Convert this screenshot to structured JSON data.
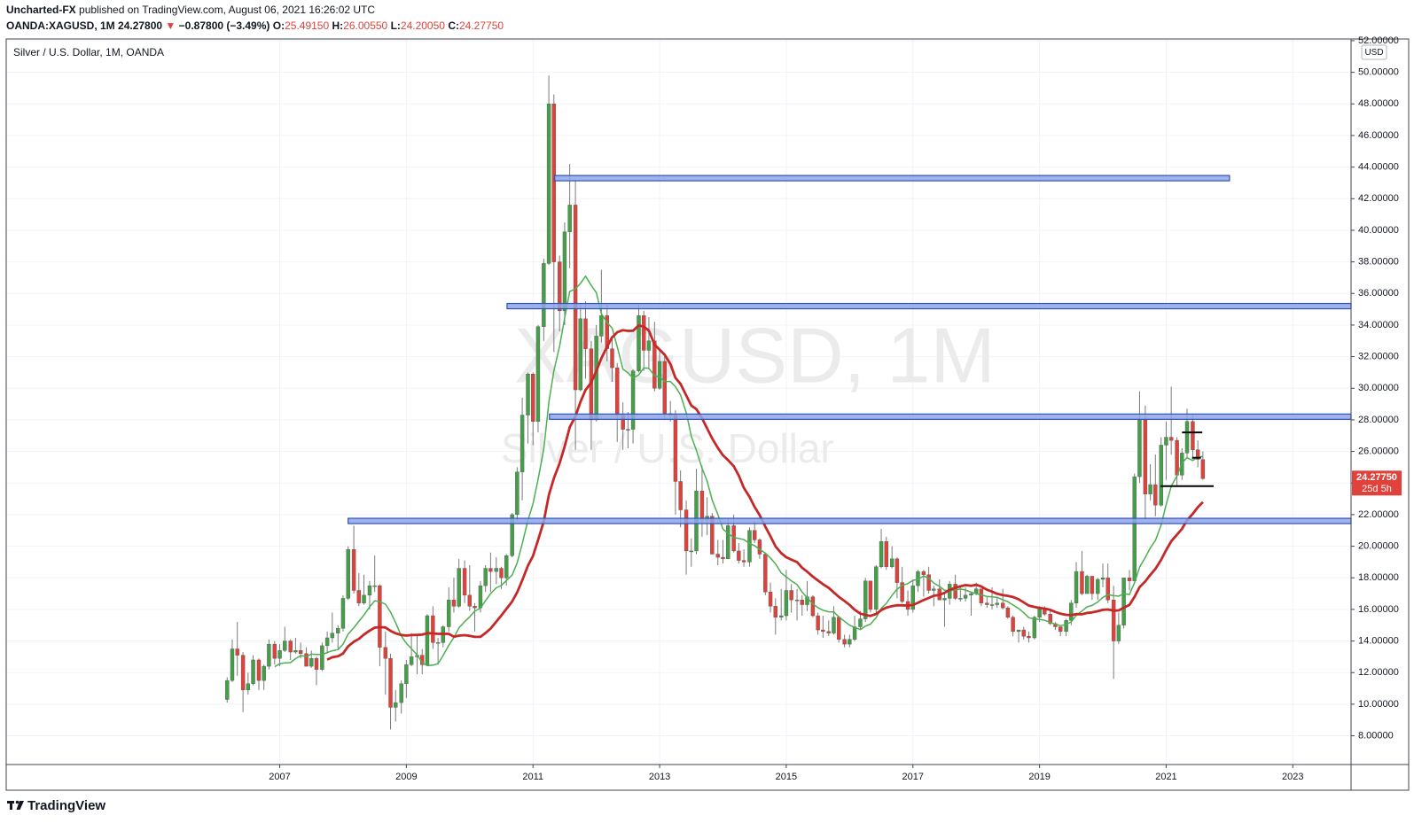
{
  "header": {
    "author": "Uncharted-FX",
    "published": "published on TradingView.com, August 06, 2021 16:26:02 UTC",
    "symbol": "OANDA:XAGUSD, 1M",
    "last": "24.27800",
    "arrow": "▼",
    "change": "−0.87800 (−3.49%)",
    "ohlc": [
      {
        "label": "O:",
        "value": "25.49150"
      },
      {
        "label": "H:",
        "value": "26.00550"
      },
      {
        "label": "L:",
        "value": "24.20050"
      },
      {
        "label": "C:",
        "value": "24.27750"
      }
    ]
  },
  "footer": {
    "brand": "TradingView"
  },
  "chart_data": {
    "type": "candlestick",
    "legend": "Silver / U.S. Dollar, 1M, OANDA",
    "watermark": [
      "XAGUSD, 1M",
      "Silver / U.S. Dollar"
    ],
    "currency": "USD",
    "up_color": "#43a047",
    "down_color": "#e0413a",
    "wick_color": "#7a7a7a",
    "ma_colors": [
      "#4caf50",
      "#c62828"
    ],
    "grid": true,
    "price_label": {
      "value": 24.2775,
      "label": "24.27750",
      "countdown": "25d 5h",
      "color": "#e0413a"
    },
    "xlim": [
      2002.68,
      2023.92
    ],
    "xticks": [
      2007,
      2009,
      2011,
      2013,
      2015,
      2017,
      2019,
      2021,
      2023
    ],
    "ylim": [
      6.18,
      52.11
    ],
    "yticks": [
      {
        "value": 8,
        "label": "8.00000"
      },
      {
        "value": 10,
        "label": "10.00000"
      },
      {
        "value": 12,
        "label": "12.00000"
      },
      {
        "value": 14,
        "label": "14.00000"
      },
      {
        "value": 16,
        "label": "16.00000"
      },
      {
        "value": 18,
        "label": "18.00000"
      },
      {
        "value": 20,
        "label": "20.00000"
      },
      {
        "value": 22,
        "label": "22.00000"
      },
      {
        "value": 24,
        "label": "24.00000"
      },
      {
        "value": 26,
        "label": "26.00000"
      },
      {
        "value": 28,
        "label": "28.00000"
      },
      {
        "value": 30,
        "label": "30.00000"
      },
      {
        "value": 32,
        "label": "32.00000"
      },
      {
        "value": 34,
        "label": "34.00000"
      },
      {
        "value": 36,
        "label": "36.00000"
      },
      {
        "value": 38,
        "label": "38.00000"
      },
      {
        "value": 40,
        "label": "40.00000"
      },
      {
        "value": 42,
        "label": "42.00000"
      },
      {
        "value": 44,
        "label": "44.00000"
      },
      {
        "value": 46,
        "label": "46.00000"
      },
      {
        "value": 48,
        "label": "48.00000"
      },
      {
        "value": 50,
        "label": "50.00000"
      },
      {
        "value": 52,
        "label": "52.00000"
      }
    ],
    "levels": [
      {
        "value": 43.3,
        "x": [
          2011.34,
          2022.0
        ],
        "color": "#2f52b8"
      },
      {
        "value": 35.2,
        "x": [
          2010.59,
          2023.92
        ],
        "color": "#2f52b8"
      },
      {
        "value": 28.2,
        "x": [
          2011.26,
          2023.92
        ],
        "color": "#2f52b8"
      },
      {
        "value": 21.6,
        "x": [
          2008.08,
          2023.92
        ],
        "color": "#2f52b8"
      },
      {
        "value": 27.2,
        "x": [
          2021.25,
          2021.57
        ],
        "color": "#000000"
      },
      {
        "value": 25.6,
        "x": [
          2021.41,
          2021.55
        ],
        "color": "#000000"
      },
      {
        "value": 23.8,
        "x": [
          2020.91,
          2021.75
        ],
        "color": "#000000"
      }
    ],
    "x": [
      2006.17,
      2006.25,
      2006.33,
      2006.42,
      2006.5,
      2006.58,
      2006.67,
      2006.75,
      2006.83,
      2006.92,
      2007,
      2007.08,
      2007.17,
      2007.25,
      2007.33,
      2007.42,
      2007.5,
      2007.58,
      2007.67,
      2007.75,
      2007.83,
      2007.92,
      2008,
      2008.08,
      2008.17,
      2008.25,
      2008.33,
      2008.42,
      2008.5,
      2008.58,
      2008.67,
      2008.75,
      2008.83,
      2008.92,
      2009,
      2009.08,
      2009.17,
      2009.25,
      2009.33,
      2009.42,
      2009.5,
      2009.58,
      2009.67,
      2009.75,
      2009.83,
      2009.92,
      2010,
      2010.08,
      2010.17,
      2010.25,
      2010.33,
      2010.42,
      2010.5,
      2010.58,
      2010.67,
      2010.75,
      2010.83,
      2010.92,
      2011,
      2011.08,
      2011.17,
      2011.25,
      2011.33,
      2011.42,
      2011.5,
      2011.58,
      2011.67,
      2011.75,
      2011.83,
      2011.92,
      2012,
      2012.08,
      2012.17,
      2012.25,
      2012.33,
      2012.42,
      2012.5,
      2012.58,
      2012.67,
      2012.75,
      2012.83,
      2012.92,
      2013,
      2013.08,
      2013.17,
      2013.25,
      2013.33,
      2013.42,
      2013.5,
      2013.58,
      2013.67,
      2013.75,
      2013.83,
      2013.92,
      2014,
      2014.08,
      2014.17,
      2014.25,
      2014.33,
      2014.42,
      2014.5,
      2014.58,
      2014.67,
      2014.75,
      2014.83,
      2014.92,
      2015,
      2015.08,
      2015.17,
      2015.25,
      2015.33,
      2015.42,
      2015.5,
      2015.58,
      2015.67,
      2015.75,
      2015.83,
      2015.92,
      2016,
      2016.08,
      2016.17,
      2016.25,
      2016.33,
      2016.42,
      2016.5,
      2016.58,
      2016.67,
      2016.75,
      2016.83,
      2016.92,
      2017,
      2017.08,
      2017.17,
      2017.25,
      2017.33,
      2017.42,
      2017.5,
      2017.58,
      2017.67,
      2017.75,
      2017.83,
      2017.92,
      2018,
      2018.08,
      2018.17,
      2018.25,
      2018.33,
      2018.42,
      2018.5,
      2018.58,
      2018.67,
      2018.75,
      2018.83,
      2018.92,
      2019,
      2019.08,
      2019.17,
      2019.25,
      2019.33,
      2019.42,
      2019.5,
      2019.58,
      2019.67,
      2019.75,
      2019.83,
      2019.92,
      2020,
      2020.08,
      2020.17,
      2020.25,
      2020.33,
      2020.42,
      2020.5,
      2020.58,
      2020.67,
      2020.75,
      2020.83,
      2020.92,
      2021,
      2021.08,
      2021.17,
      2021.25,
      2021.33,
      2021.42,
      2021.5,
      2021.58
    ],
    "candles": [
      [
        10.3,
        11.7,
        10.1,
        11.5
      ],
      [
        11.5,
        14.1,
        11.4,
        13.5
      ],
      [
        13.5,
        15.2,
        11.8,
        13.1
      ],
      [
        13.1,
        13.3,
        9.5,
        10.9
      ],
      [
        10.9,
        12.0,
        10.6,
        11.3
      ],
      [
        11.3,
        13.1,
        11.2,
        12.8
      ],
      [
        12.8,
        12.9,
        10.9,
        11.5
      ],
      [
        11.5,
        12.5,
        10.9,
        12.4
      ],
      [
        12.4,
        14.1,
        12.2,
        13.8
      ],
      [
        13.8,
        14.0,
        12.5,
        12.9
      ],
      [
        12.9,
        13.8,
        12.4,
        13.4
      ],
      [
        13.4,
        14.9,
        13.3,
        14.0
      ],
      [
        14.0,
        14.1,
        12.8,
        13.3
      ],
      [
        13.3,
        14.2,
        13.2,
        13.4
      ],
      [
        13.4,
        13.9,
        12.9,
        13.2
      ],
      [
        13.2,
        13.6,
        12.4,
        12.4
      ],
      [
        12.4,
        13.4,
        12.3,
        12.9
      ],
      [
        12.9,
        13.0,
        11.2,
        12.2
      ],
      [
        12.2,
        13.9,
        12.1,
        13.7
      ],
      [
        13.7,
        14.6,
        13.2,
        14.2
      ],
      [
        14.2,
        15.8,
        13.9,
        14.5
      ],
      [
        14.5,
        15.0,
        13.5,
        14.8
      ],
      [
        14.8,
        16.9,
        14.6,
        16.7
      ],
      [
        16.7,
        20.0,
        16.6,
        19.8
      ],
      [
        19.8,
        21.3,
        17.0,
        17.2
      ],
      [
        17.2,
        18.3,
        16.2,
        16.4
      ],
      [
        16.4,
        18.2,
        16.3,
        16.9
      ],
      [
        16.9,
        17.8,
        16.0,
        17.5
      ],
      [
        17.5,
        19.4,
        17.1,
        17.5
      ],
      [
        17.5,
        17.6,
        12.4,
        13.6
      ],
      [
        13.6,
        14.6,
        10.6,
        12.9
      ],
      [
        12.9,
        13.2,
        8.4,
        9.8
      ],
      [
        9.8,
        10.9,
        8.9,
        10.1
      ],
      [
        10.1,
        11.5,
        9.4,
        11.3
      ],
      [
        11.3,
        12.8,
        10.4,
        12.5
      ],
      [
        12.5,
        14.5,
        12.4,
        13.0
      ],
      [
        13.0,
        14.4,
        11.9,
        13.1
      ],
      [
        13.1,
        13.5,
        11.9,
        12.5
      ],
      [
        12.5,
        15.7,
        12.4,
        15.6
      ],
      [
        15.6,
        16.2,
        13.5,
        13.9
      ],
      [
        13.9,
        14.2,
        12.5,
        13.9
      ],
      [
        13.9,
        15.0,
        13.6,
        14.9
      ],
      [
        14.9,
        17.4,
        14.6,
        16.6
      ],
      [
        16.6,
        18.0,
        15.8,
        16.2
      ],
      [
        16.2,
        19.2,
        16.1,
        18.6
      ],
      [
        18.6,
        19.1,
        16.4,
        16.9
      ],
      [
        16.9,
        18.8,
        15.9,
        16.2
      ],
      [
        16.2,
        16.4,
        14.6,
        16.1
      ],
      [
        16.1,
        17.8,
        15.8,
        17.5
      ],
      [
        17.5,
        18.8,
        17.1,
        18.6
      ],
      [
        18.6,
        19.6,
        17.1,
        18.4
      ],
      [
        18.4,
        19.3,
        17.6,
        18.6
      ],
      [
        18.6,
        18.7,
        17.3,
        18.0
      ],
      [
        18.0,
        19.5,
        17.5,
        19.4
      ],
      [
        19.4,
        22.1,
        19.3,
        22.0
      ],
      [
        22.0,
        25.0,
        21.6,
        24.7
      ],
      [
        24.7,
        29.4,
        22.9,
        28.3
      ],
      [
        28.3,
        31.0,
        26.5,
        30.9
      ],
      [
        30.9,
        31.0,
        26.4,
        27.9
      ],
      [
        27.9,
        34.0,
        27.2,
        33.9
      ],
      [
        33.9,
        38.2,
        33.0,
        37.9
      ],
      [
        37.9,
        49.8,
        37.8,
        48.0
      ],
      [
        48.0,
        48.6,
        32.3,
        38.0
      ],
      [
        38.0,
        38.4,
        33.6,
        34.9
      ],
      [
        34.9,
        40.5,
        34.0,
        39.9
      ],
      [
        39.9,
        44.2,
        37.6,
        41.6
      ],
      [
        41.6,
        43.2,
        26.1,
        29.9
      ],
      [
        29.9,
        35.4,
        29.8,
        34.4
      ],
      [
        34.4,
        35.5,
        30.6,
        32.5
      ],
      [
        32.5,
        33.0,
        26.1,
        28.0
      ],
      [
        28.0,
        34.0,
        27.9,
        33.3
      ],
      [
        33.3,
        37.5,
        32.9,
        34.6
      ],
      [
        34.6,
        35.4,
        31.7,
        32.5
      ],
      [
        32.5,
        33.1,
        30.4,
        31.3
      ],
      [
        31.3,
        31.6,
        26.6,
        28.3
      ],
      [
        28.3,
        29.1,
        26.1,
        27.4
      ],
      [
        27.4,
        28.5,
        26.2,
        27.4
      ],
      [
        27.4,
        31.2,
        26.5,
        31.1
      ],
      [
        31.1,
        35.3,
        31.0,
        34.6
      ],
      [
        34.6,
        34.9,
        31.1,
        32.4
      ],
      [
        32.4,
        34.5,
        31.2,
        33.0
      ],
      [
        33.0,
        34.2,
        29.8,
        30.0
      ],
      [
        30.0,
        32.4,
        29.9,
        31.7
      ],
      [
        31.7,
        32.2,
        28.0,
        28.4
      ],
      [
        28.4,
        29.2,
        27.9,
        28.3
      ],
      [
        28.3,
        28.6,
        22.0,
        24.1
      ],
      [
        24.1,
        24.8,
        21.2,
        22.3
      ],
      [
        22.3,
        22.9,
        18.2,
        19.7
      ],
      [
        19.7,
        20.5,
        18.7,
        19.7
      ],
      [
        19.7,
        24.9,
        19.5,
        23.5
      ],
      [
        23.5,
        25.1,
        20.6,
        21.7
      ],
      [
        21.7,
        23.1,
        20.7,
        21.9
      ],
      [
        21.9,
        22.1,
        19.5,
        19.5
      ],
      [
        19.5,
        20.4,
        18.8,
        19.3
      ],
      [
        19.3,
        20.4,
        18.9,
        19.2
      ],
      [
        19.2,
        21.8,
        19.2,
        21.3
      ],
      [
        21.3,
        22.0,
        19.6,
        19.7
      ],
      [
        19.7,
        20.2,
        18.9,
        19.1
      ],
      [
        19.1,
        19.8,
        18.7,
        19.0
      ],
      [
        19.0,
        21.2,
        18.7,
        21.0
      ],
      [
        21.0,
        21.6,
        20.2,
        20.4
      ],
      [
        20.4,
        20.5,
        19.2,
        19.5
      ],
      [
        19.5,
        19.6,
        16.9,
        17.1
      ],
      [
        17.1,
        17.7,
        15.8,
        16.2
      ],
      [
        16.2,
        16.7,
        14.4,
        15.5
      ],
      [
        15.5,
        17.3,
        15.3,
        15.6
      ],
      [
        15.6,
        18.5,
        15.3,
        17.2
      ],
      [
        17.2,
        17.6,
        15.8,
        16.6
      ],
      [
        16.6,
        17.3,
        15.3,
        16.6
      ],
      [
        16.6,
        16.9,
        15.6,
        16.3
      ],
      [
        16.3,
        17.8,
        15.9,
        16.8
      ],
      [
        16.8,
        16.9,
        15.5,
        15.6
      ],
      [
        15.6,
        15.8,
        14.4,
        14.7
      ],
      [
        14.7,
        15.6,
        14.2,
        14.6
      ],
      [
        14.6,
        15.3,
        14.3,
        14.5
      ],
      [
        14.5,
        16.2,
        14.4,
        15.5
      ],
      [
        15.5,
        15.6,
        13.9,
        14.1
      ],
      [
        14.1,
        14.4,
        13.6,
        13.8
      ],
      [
        13.8,
        14.4,
        13.6,
        14.1
      ],
      [
        14.1,
        15.6,
        14.0,
        14.9
      ],
      [
        14.9,
        15.9,
        14.7,
        15.4
      ],
      [
        15.4,
        18.0,
        15.2,
        17.8
      ],
      [
        17.8,
        17.8,
        15.8,
        16.0
      ],
      [
        16.0,
        18.8,
        15.8,
        18.7
      ],
      [
        18.7,
        21.1,
        18.6,
        20.3
      ],
      [
        20.3,
        20.6,
        18.5,
        18.7
      ],
      [
        18.7,
        20.0,
        18.6,
        19.2
      ],
      [
        19.2,
        19.3,
        16.7,
        17.7
      ],
      [
        17.7,
        18.7,
        16.4,
        16.5
      ],
      [
        16.5,
        17.2,
        15.6,
        16.0
      ],
      [
        16.0,
        17.9,
        15.8,
        17.5
      ],
      [
        17.5,
        18.5,
        17.1,
        18.4
      ],
      [
        18.4,
        18.5,
        16.8,
        18.2
      ],
      [
        18.2,
        18.7,
        17.0,
        17.2
      ],
      [
        17.2,
        17.5,
        16.2,
        17.3
      ],
      [
        17.3,
        17.9,
        16.6,
        16.6
      ],
      [
        16.6,
        17.0,
        14.9,
        16.7
      ],
      [
        16.7,
        17.8,
        16.3,
        17.6
      ],
      [
        17.6,
        18.2,
        16.6,
        16.7
      ],
      [
        16.7,
        17.5,
        16.5,
        16.7
      ],
      [
        16.7,
        17.4,
        16.5,
        16.9
      ],
      [
        16.9,
        17.1,
        15.6,
        17.0
      ],
      [
        17.0,
        17.7,
        16.9,
        17.3
      ],
      [
        17.3,
        17.3,
        16.2,
        16.4
      ],
      [
        16.4,
        16.8,
        16.1,
        16.3
      ],
      [
        16.3,
        17.4,
        16.0,
        16.3
      ],
      [
        16.3,
        16.8,
        16.1,
        16.4
      ],
      [
        16.4,
        17.3,
        16.0,
        16.1
      ],
      [
        16.1,
        16.2,
        15.4,
        15.5
      ],
      [
        15.5,
        15.6,
        14.3,
        14.6
      ],
      [
        14.6,
        14.7,
        13.9,
        14.7
      ],
      [
        14.7,
        14.9,
        14.1,
        14.3
      ],
      [
        14.3,
        14.6,
        13.9,
        14.2
      ],
      [
        14.2,
        15.6,
        14.1,
        15.5
      ],
      [
        15.5,
        16.2,
        15.2,
        16.1
      ],
      [
        16.1,
        16.2,
        15.6,
        15.7
      ],
      [
        15.7,
        15.9,
        15.0,
        15.1
      ],
      [
        15.1,
        15.2,
        14.7,
        14.9
      ],
      [
        14.9,
        14.9,
        14.3,
        14.6
      ],
      [
        14.6,
        15.4,
        14.3,
        15.3
      ],
      [
        15.3,
        16.6,
        15.0,
        16.4
      ],
      [
        16.4,
        19.0,
        16.1,
        18.4
      ],
      [
        18.4,
        19.7,
        16.9,
        17.0
      ],
      [
        17.0,
        18.2,
        17.0,
        18.1
      ],
      [
        18.1,
        18.1,
        16.6,
        17.0
      ],
      [
        17.0,
        18.0,
        16.6,
        17.9
      ],
      [
        17.9,
        18.9,
        17.4,
        18.0
      ],
      [
        18.0,
        18.9,
        16.4,
        16.6
      ],
      [
        16.6,
        17.5,
        11.6,
        14.0
      ],
      [
        14.0,
        15.8,
        13.8,
        15.0
      ],
      [
        15.0,
        18.0,
        14.8,
        18.0
      ],
      [
        18.0,
        18.5,
        17.2,
        17.8
      ],
      [
        17.8,
        24.6,
        17.8,
        24.4
      ],
      [
        24.4,
        29.8,
        24.0,
        28.0
      ],
      [
        28.0,
        28.9,
        21.7,
        23.3
      ],
      [
        23.3,
        25.2,
        22.9,
        23.9
      ],
      [
        23.9,
        25.8,
        21.9,
        22.6
      ],
      [
        22.6,
        26.9,
        22.5,
        26.4
      ],
      [
        26.4,
        27.9,
        24.2,
        26.9
      ],
      [
        26.9,
        30.1,
        25.8,
        26.7
      ],
      [
        26.7,
        26.9,
        23.8,
        24.5
      ],
      [
        24.5,
        26.2,
        24.2,
        25.9
      ],
      [
        25.9,
        28.7,
        25.6,
        27.9
      ],
      [
        27.9,
        28.3,
        25.5,
        26.1
      ],
      [
        26.1,
        26.7,
        25.0,
        25.5
      ],
      [
        25.4915,
        26.0055,
        24.2005,
        24.2775
      ]
    ]
  }
}
